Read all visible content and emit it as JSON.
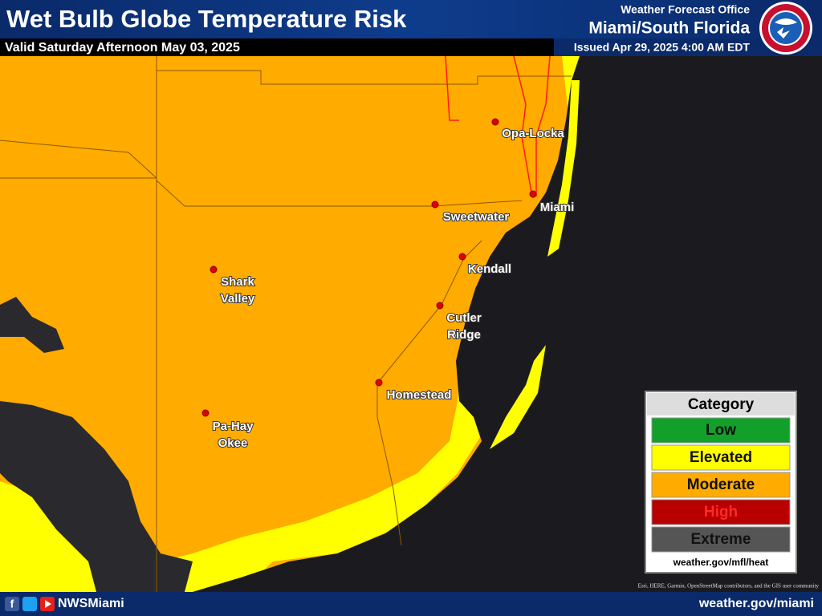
{
  "header": {
    "title": "Wet Bulb Globe Temperature Risk",
    "subtitle": "Valid Saturday Afternoon May 03, 2025",
    "office_label": "Weather Forecast Office",
    "office_name": "Miami/South Florida",
    "issued": "Issued Apr 29, 2025 4:00 AM EDT"
  },
  "cities": [
    {
      "lines": [
        "Opa-Locka"
      ]
    },
    {
      "lines": [
        "Miami"
      ]
    },
    {
      "lines": [
        "Sweetwater"
      ]
    },
    {
      "lines": [
        "Kendall"
      ]
    },
    {
      "lines": [
        "Shark",
        "Valley"
      ]
    },
    {
      "lines": [
        "Cutler",
        "Ridge"
      ]
    },
    {
      "lines": [
        "Homestead"
      ]
    },
    {
      "lines": [
        "Pa-Hay",
        "Okee"
      ]
    }
  ],
  "legend": {
    "title": "Category",
    "items": [
      {
        "label": "Low",
        "color": "#12a02a"
      },
      {
        "label": "Elevated",
        "color": "#ffff00"
      },
      {
        "label": "Moderate",
        "color": "#ffab00"
      },
      {
        "label": "High",
        "color": "#b80000"
      },
      {
        "label": "Extreme",
        "color": "#555555"
      }
    ],
    "url": "weather.gov/mfl/heat"
  },
  "attribution": "Esri, HERE, Garmin, OpenStreetMap contributors, and the GIS user community",
  "footer": {
    "handle": "NWSMiami",
    "website": "weather.gov/miami"
  }
}
